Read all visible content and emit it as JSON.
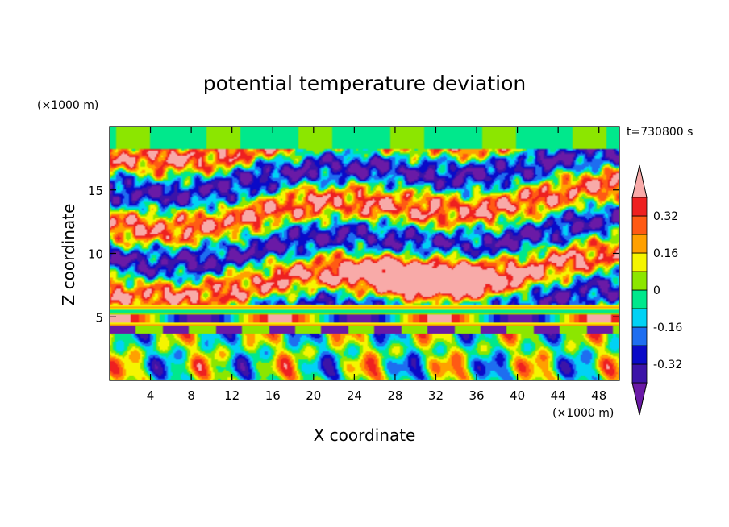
{
  "chart_data": {
    "type": "heatmap",
    "title": "potential temperature deviation",
    "xlabel": "X coordinate",
    "ylabel": "Z coordinate",
    "x_unit": "(×1000 m)",
    "y_unit": "(×1000 m)",
    "time_label": "t=730800 s",
    "xlim": [
      0,
      50
    ],
    "ylim": [
      0,
      20
    ],
    "x_ticks": [
      4,
      8,
      12,
      16,
      20,
      24,
      28,
      32,
      36,
      40,
      44,
      48
    ],
    "y_ticks": [
      5,
      10,
      15
    ],
    "colorbar": {
      "levels": [
        -0.4,
        -0.32,
        -0.24,
        -0.16,
        -0.08,
        0,
        0.08,
        0.16,
        0.24,
        0.32,
        0.4
      ],
      "labels": [
        "0.32",
        "0.16",
        "0",
        "-0.16",
        "-0.32"
      ],
      "label_values": [
        0.32,
        0.16,
        0,
        -0.16,
        -0.32
      ],
      "colors": [
        "#6a1aa6",
        "#3c14a8",
        "#0a0ac8",
        "#1e6ef0",
        "#00d2f5",
        "#00e88c",
        "#8ce600",
        "#f5f500",
        "#ffa000",
        "#ff5a14",
        "#ee2020",
        "#f8aaa8"
      ],
      "extend": "both"
    }
  }
}
